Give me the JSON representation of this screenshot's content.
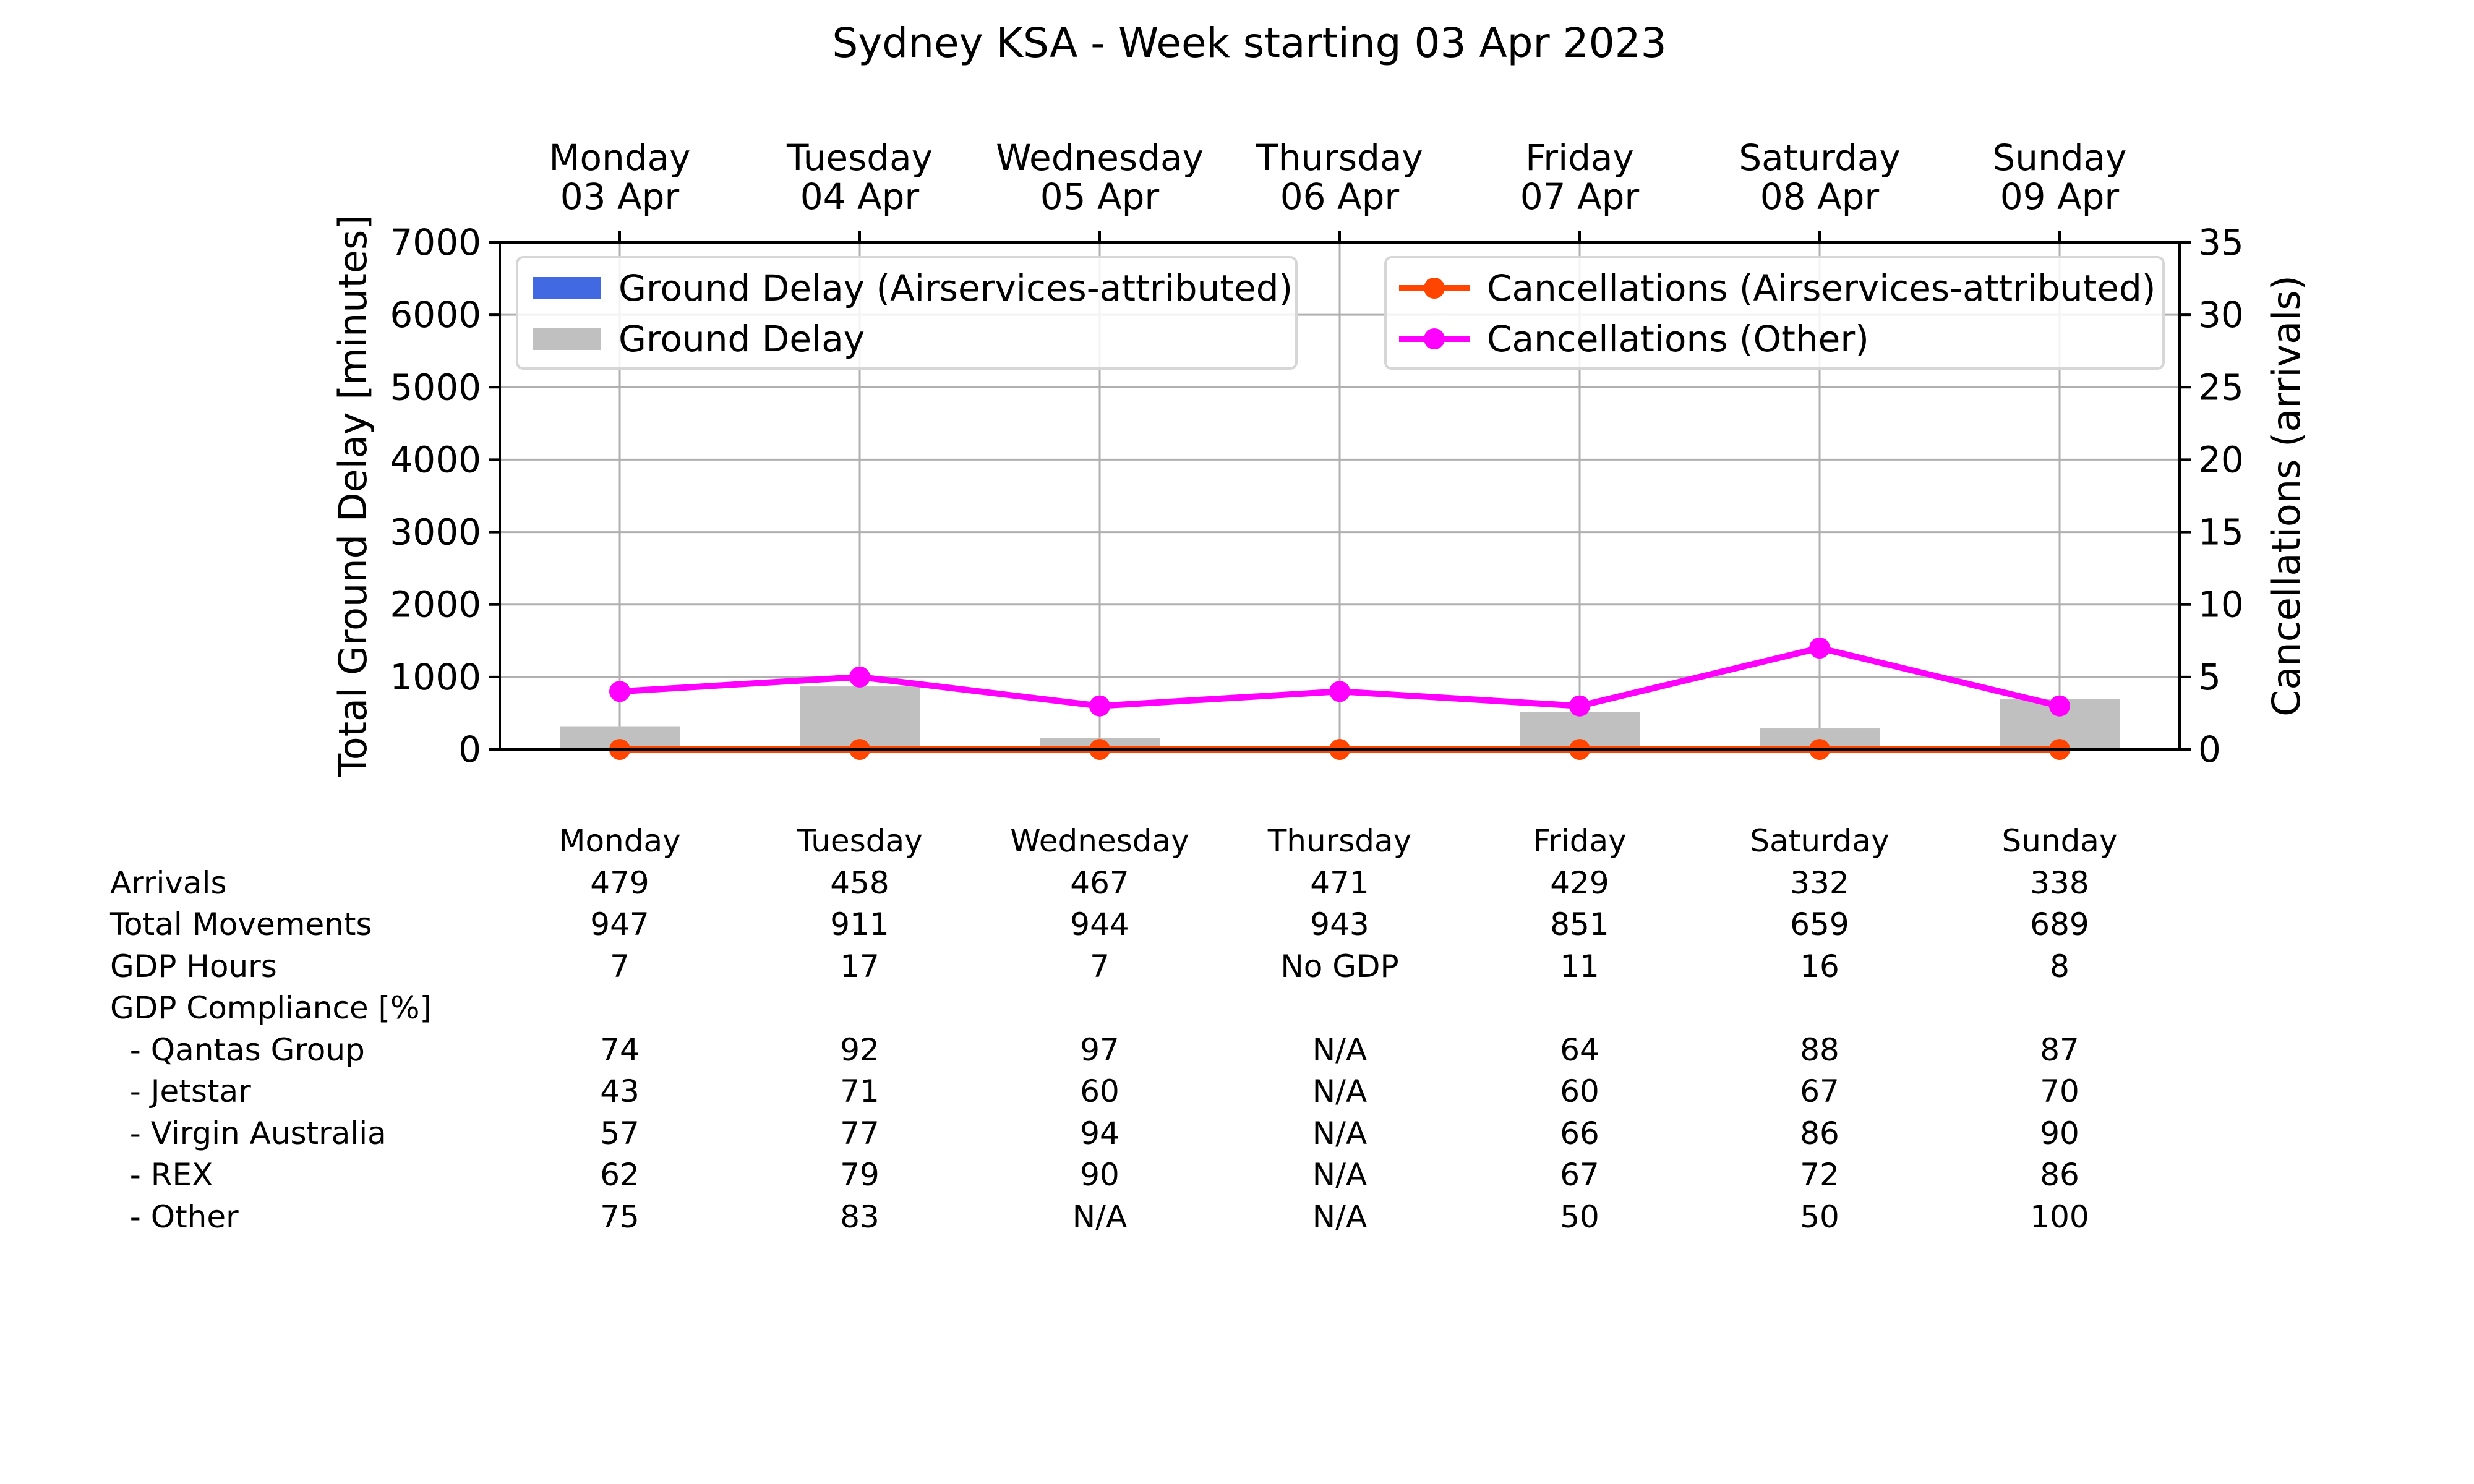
{
  "chart_data": {
    "type": "bar",
    "title": "Sydney KSA - Week starting 03 Apr 2023",
    "categories": [
      "Monday\n03 Apr",
      "Tuesday\n04 Apr",
      "Wednesday\n05 Apr",
      "Thursday\n06 Apr",
      "Friday\n07 Apr",
      "Saturday\n08 Apr",
      "Sunday\n09 Apr"
    ],
    "ylabel": "Total Ground Delay [minutes]",
    "ylim": [
      0,
      7000
    ],
    "yticks": [
      0,
      1000,
      2000,
      3000,
      4000,
      5000,
      6000,
      7000
    ],
    "y2label": "Cancellations (arrivals)",
    "y2lim": [
      0,
      35
    ],
    "y2ticks": [
      0,
      5,
      10,
      15,
      20,
      25,
      30,
      35
    ],
    "grid": true,
    "series": [
      {
        "name": "Ground Delay (Airservices-attributed)",
        "kind": "bar",
        "axis": "left",
        "color": "#4169e1",
        "values": [
          0,
          0,
          0,
          0,
          0,
          0,
          0
        ]
      },
      {
        "name": "Ground Delay",
        "kind": "bar",
        "axis": "left",
        "color": "#c0c0c0",
        "values": [
          320,
          870,
          160,
          0,
          520,
          290,
          700
        ]
      },
      {
        "name": "Cancellations (Airservices-attributed)",
        "kind": "line",
        "axis": "right",
        "color": "#ff4500",
        "values": [
          0,
          0,
          0,
          0,
          0,
          0,
          0
        ]
      },
      {
        "name": "Cancellations (Other)",
        "kind": "line",
        "axis": "right",
        "color": "#ff00ff",
        "values": [
          4,
          5,
          3,
          4,
          3,
          7,
          3
        ]
      }
    ],
    "legend_placement": [
      "upper-left",
      "upper-right"
    ]
  },
  "table": {
    "days": [
      "Monday",
      "Tuesday",
      "Wednesday",
      "Thursday",
      "Friday",
      "Saturday",
      "Sunday"
    ],
    "rows": [
      {
        "label": "Arrivals",
        "values": [
          "479",
          "458",
          "467",
          "471",
          "429",
          "332",
          "338"
        ]
      },
      {
        "label": "Total Movements",
        "values": [
          "947",
          "911",
          "944",
          "943",
          "851",
          "659",
          "689"
        ]
      },
      {
        "label": "GDP Hours",
        "values": [
          "7",
          "17",
          "7",
          "No GDP",
          "11",
          "16",
          "8"
        ]
      },
      {
        "label": "GDP Compliance [%]",
        "values": [
          "",
          "",
          "",
          "",
          "",
          "",
          ""
        ]
      },
      {
        "label": "  - Qantas Group",
        "values": [
          "74",
          "92",
          "97",
          "N/A",
          "64",
          "88",
          "87"
        ]
      },
      {
        "label": "  - Jetstar",
        "values": [
          "43",
          "71",
          "60",
          "N/A",
          "60",
          "67",
          "70"
        ]
      },
      {
        "label": "  - Virgin Australia",
        "values": [
          "57",
          "77",
          "94",
          "N/A",
          "66",
          "86",
          "90"
        ]
      },
      {
        "label": "  - REX",
        "values": [
          "62",
          "79",
          "90",
          "N/A",
          "67",
          "72",
          "86"
        ]
      },
      {
        "label": "  - Other",
        "values": [
          "75",
          "83",
          "N/A",
          "N/A",
          "50",
          "50",
          "100"
        ]
      }
    ]
  }
}
